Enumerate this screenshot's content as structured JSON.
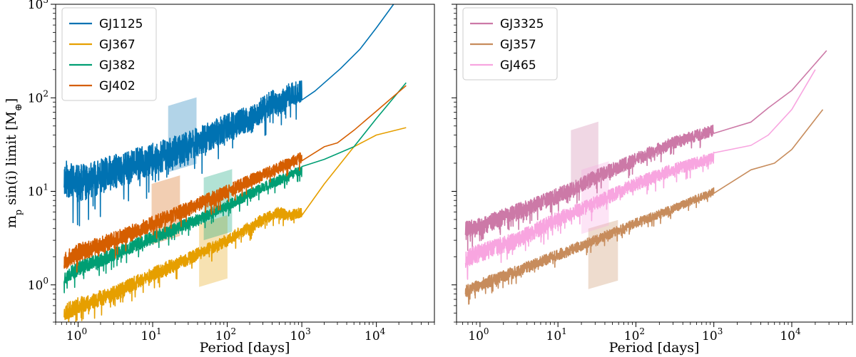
{
  "figure": {
    "ylabel": "m_p sin(i) limit [M_⊕]",
    "ylabel_main": "m",
    "ylabel_sub": "p",
    "ylabel_rest": " sin(i) limit [M",
    "ylabel_earth": "⊕",
    "ylabel_close": "]"
  },
  "chart_data": [
    {
      "type": "line",
      "id": "left",
      "xlabel": "Period [days]",
      "ylabel": "m_p sin(i) limit [M_⊕]",
      "xscale": "log",
      "yscale": "log",
      "xlim": [
        0.5,
        60000
      ],
      "ylim": [
        0.4,
        1000
      ],
      "xticks": [
        1,
        10,
        100,
        1000,
        10000
      ],
      "xtick_labels": [
        "10^0",
        "10^1",
        "10^2",
        "10^3",
        "10^4"
      ],
      "yticks": [
        1,
        10,
        100,
        1000
      ],
      "ytick_labels": [
        "10^0",
        "10^1",
        "10^2",
        "10^3"
      ],
      "legend_position": "top-left",
      "series": [
        {
          "name": "GJ1125",
          "color": "#0072b2",
          "noise": 0.45,
          "seed": 11,
          "x": [
            0.65,
            1,
            3,
            10,
            30,
            100,
            200,
            300,
            400,
            500,
            700,
            1000,
            1500,
            3300,
            6000,
            10000,
            17000
          ],
          "y": [
            14,
            12,
            16,
            22,
            30,
            48,
            60,
            75,
            90,
            85,
            110,
            115,
            118,
            205,
            330,
            560,
            1000
          ],
          "band": {
            "x_center": 25,
            "x_width_factor": 1.55,
            "y_low": 16,
            "y_high": 82
          }
        },
        {
          "name": "GJ367",
          "color": "#e69f00",
          "noise": 0.2,
          "seed": 23,
          "x": [
            0.65,
            1,
            3,
            10,
            30,
            100,
            300,
            500,
            700,
            1000,
            2000,
            3000,
            5000,
            10000,
            25000
          ],
          "y": [
            0.5,
            0.6,
            0.8,
            1.3,
            1.9,
            3.0,
            5.0,
            6.0,
            5.5,
            6.0,
            12,
            18,
            30,
            40,
            48
          ],
          "band": {
            "x_center": 65,
            "x_width_factor": 1.55,
            "y_low": 0.95,
            "y_high": 4.5
          }
        },
        {
          "name": "GJ382",
          "color": "#009e73",
          "noise": 0.18,
          "seed": 37,
          "x": [
            0.65,
            1,
            3,
            10,
            30,
            100,
            300,
            1000,
            2000,
            5000,
            10000,
            25000
          ],
          "y": [
            1.2,
            1.5,
            2.1,
            3.2,
            4.5,
            7,
            11,
            17,
            22,
            30,
            60,
            145
          ],
          "band": {
            "x_center": 75,
            "x_width_factor": 1.55,
            "y_low": 3.0,
            "y_high": 14
          }
        },
        {
          "name": "GJ402",
          "color": "#d55e00",
          "noise": 0.22,
          "seed": 53,
          "x": [
            0.65,
            1,
            3,
            10,
            30,
            100,
            300,
            1000,
            2000,
            3000,
            5000,
            10000,
            25000
          ],
          "y": [
            1.8,
            2.2,
            3.0,
            4.5,
            6.5,
            10,
            15,
            23,
            30,
            33,
            45,
            72,
            135
          ],
          "band": {
            "x_center": 15,
            "x_width_factor": 1.55,
            "y_low": 2.7,
            "y_high": 12
          }
        }
      ]
    },
    {
      "type": "line",
      "id": "right",
      "xlabel": "Period [days]",
      "ylabel": "",
      "xscale": "log",
      "yscale": "log",
      "xlim": [
        0.5,
        60000
      ],
      "ylim": [
        0.4,
        1000
      ],
      "xticks": [
        1,
        10,
        100,
        1000,
        10000
      ],
      "xtick_labels": [
        "10^0",
        "10^1",
        "10^2",
        "10^3",
        "10^4"
      ],
      "yticks": [
        1,
        10,
        100,
        1000
      ],
      "ytick_labels": [],
      "legend_position": "top-left",
      "series": [
        {
          "name": "GJ3325",
          "color": "#cc79a7",
          "noise": 0.22,
          "seed": 71,
          "x": [
            0.65,
            1,
            3,
            10,
            30,
            100,
            300,
            1000,
            3000,
            5000,
            10000,
            28000
          ],
          "y": [
            3.8,
            4.2,
            6,
            9,
            14,
            22,
            33,
            45,
            55,
            78,
            120,
            320
          ],
          "band": {
            "x_center": 22,
            "x_width_factor": 1.5,
            "y_low": 10,
            "y_high": 45
          }
        },
        {
          "name": "GJ357",
          "color": "#c78c5c",
          "noise": 0.15,
          "seed": 83,
          "x": [
            0.65,
            1,
            3,
            10,
            30,
            100,
            300,
            1000,
            3000,
            6000,
            10000,
            25000
          ],
          "y": [
            0.85,
            1.0,
            1.4,
            2.1,
            3.0,
            4.6,
            6.5,
            10,
            17,
            20,
            28,
            75
          ],
          "band": {
            "x_center": 38,
            "x_width_factor": 1.55,
            "y_low": 0.9,
            "y_high": 4.0
          }
        },
        {
          "name": "GJ465",
          "color": "#f8a5e0",
          "noise": 0.22,
          "seed": 97,
          "x": [
            0.65,
            1,
            3,
            10,
            30,
            100,
            300,
            1000,
            3000,
            5000,
            10000,
            20000
          ],
          "y": [
            1.9,
            2.2,
            3.0,
            5,
            7.5,
            12,
            17,
            23,
            31,
            40,
            75,
            200
          ],
          "band": {
            "x_center": 30,
            "x_width_factor": 1.5,
            "y_low": 3.5,
            "y_high": 17
          }
        }
      ]
    }
  ]
}
